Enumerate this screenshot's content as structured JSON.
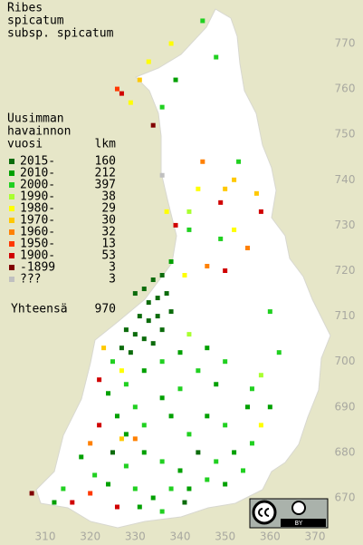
{
  "title": [
    "Ribes",
    "spicatum",
    "subsp. spicatum"
  ],
  "legend": {
    "header": [
      "Uusimman",
      "havainnon",
      "vuosi"
    ],
    "count_header": "lkm",
    "items": [
      {
        "label": "2015-",
        "count": 160,
        "color": "#0b6b0b"
      },
      {
        "label": "2010-",
        "count": 212,
        "color": "#00a000"
      },
      {
        "label": "2000-",
        "count": 397,
        "color": "#20d020"
      },
      {
        "label": "1990-",
        "count": 38,
        "color": "#a8ff30"
      },
      {
        "label": "1980-",
        "count": 29,
        "color": "#ffff00"
      },
      {
        "label": "1970-",
        "count": 30,
        "color": "#ffc800"
      },
      {
        "label": "1960-",
        "count": 32,
        "color": "#ff8000"
      },
      {
        "label": "1950-",
        "count": 13,
        "color": "#ff3800"
      },
      {
        "label": "1900-",
        "count": 53,
        "color": "#d00000"
      },
      {
        "label": "-1899",
        "count": 3,
        "color": "#800000"
      },
      {
        "label": "???",
        "count": 3,
        "color": "#c0c0c0"
      }
    ],
    "total_label": "Yhteensä",
    "total": 970
  },
  "xticks": [
    310,
    320,
    330,
    340,
    350,
    360,
    370
  ],
  "yticks": [
    670,
    680,
    690,
    700,
    710,
    720,
    730,
    740,
    750,
    760,
    770
  ],
  "xlim": [
    300,
    380
  ],
  "ylim": [
    660,
    780
  ],
  "badge": "BY",
  "observations": [
    [
      326,
      760,
      7
    ],
    [
      327,
      759,
      8
    ],
    [
      329,
      757,
      4
    ],
    [
      331,
      762,
      5
    ],
    [
      333,
      766,
      4
    ],
    [
      336,
      756,
      2
    ],
    [
      339,
      762,
      1
    ],
    [
      345,
      775,
      2
    ],
    [
      348,
      767,
      2
    ],
    [
      338,
      770,
      4
    ],
    [
      334,
      752,
      9
    ],
    [
      345,
      744,
      6
    ],
    [
      344,
      738,
      4
    ],
    [
      350,
      738,
      5
    ],
    [
      342,
      733,
      3
    ],
    [
      337,
      733,
      4
    ],
    [
      336,
      741,
      10
    ],
    [
      339,
      730,
      8
    ],
    [
      342,
      729,
      2
    ],
    [
      349,
      735,
      8
    ],
    [
      352,
      729,
      4
    ],
    [
      357,
      737,
      5
    ],
    [
      358,
      733,
      8
    ],
    [
      353,
      744,
      2
    ],
    [
      352,
      740,
      5
    ],
    [
      349,
      727,
      2
    ],
    [
      355,
      725,
      6
    ],
    [
      350,
      720,
      8
    ],
    [
      346,
      721,
      6
    ],
    [
      341,
      719,
      4
    ],
    [
      338,
      722,
      1
    ],
    [
      360,
      711,
      2
    ],
    [
      362,
      702,
      2
    ],
    [
      358,
      697,
      3
    ],
    [
      355,
      690,
      1
    ],
    [
      356,
      682,
      2
    ],
    [
      330,
      715,
      0
    ],
    [
      332,
      716,
      0
    ],
    [
      334,
      718,
      0
    ],
    [
      336,
      719,
      0
    ],
    [
      333,
      713,
      0
    ],
    [
      335,
      714,
      0
    ],
    [
      337,
      715,
      0
    ],
    [
      331,
      710,
      0
    ],
    [
      333,
      709,
      0
    ],
    [
      335,
      710,
      0
    ],
    [
      328,
      707,
      0
    ],
    [
      330,
      706,
      0
    ],
    [
      332,
      705,
      0
    ],
    [
      327,
      703,
      0
    ],
    [
      329,
      702,
      0
    ],
    [
      336,
      707,
      0
    ],
    [
      338,
      711,
      0
    ],
    [
      334,
      704,
      0
    ],
    [
      325,
      700,
      2
    ],
    [
      327,
      698,
      4
    ],
    [
      322,
      696,
      8
    ],
    [
      324,
      693,
      1
    ],
    [
      328,
      695,
      2
    ],
    [
      332,
      698,
      1
    ],
    [
      336,
      700,
      2
    ],
    [
      340,
      702,
      1
    ],
    [
      342,
      706,
      3
    ],
    [
      344,
      698,
      2
    ],
    [
      346,
      703,
      1
    ],
    [
      350,
      700,
      2
    ],
    [
      348,
      695,
      1
    ],
    [
      340,
      694,
      2
    ],
    [
      336,
      692,
      1
    ],
    [
      330,
      690,
      2
    ],
    [
      326,
      688,
      1
    ],
    [
      322,
      686,
      8
    ],
    [
      320,
      682,
      6
    ],
    [
      318,
      679,
      1
    ],
    [
      321,
      675,
      2
    ],
    [
      325,
      680,
      0
    ],
    [
      328,
      684,
      1
    ],
    [
      332,
      686,
      2
    ],
    [
      338,
      688,
      1
    ],
    [
      342,
      684,
      2
    ],
    [
      346,
      688,
      1
    ],
    [
      350,
      686,
      2
    ],
    [
      352,
      680,
      1
    ],
    [
      348,
      678,
      2
    ],
    [
      344,
      680,
      0
    ],
    [
      340,
      676,
      1
    ],
    [
      336,
      678,
      2
    ],
    [
      332,
      680,
      1
    ],
    [
      328,
      677,
      2
    ],
    [
      324,
      673,
      1
    ],
    [
      320,
      671,
      7
    ],
    [
      316,
      669,
      8
    ],
    [
      314,
      672,
      2
    ],
    [
      312,
      669,
      1
    ],
    [
      307,
      671,
      9
    ],
    [
      330,
      672,
      2
    ],
    [
      334,
      670,
      1
    ],
    [
      338,
      672,
      2
    ],
    [
      342,
      672,
      1
    ],
    [
      346,
      674,
      2
    ],
    [
      350,
      673,
      1
    ],
    [
      354,
      676,
      2
    ],
    [
      326,
      668,
      8
    ],
    [
      331,
      668,
      1
    ],
    [
      336,
      667,
      2
    ],
    [
      341,
      669,
      0
    ],
    [
      356,
      694,
      2
    ],
    [
      360,
      690,
      1
    ],
    [
      358,
      686,
      4
    ],
    [
      323,
      703,
      5
    ],
    [
      327,
      683,
      5
    ],
    [
      330,
      683,
      6
    ]
  ]
}
